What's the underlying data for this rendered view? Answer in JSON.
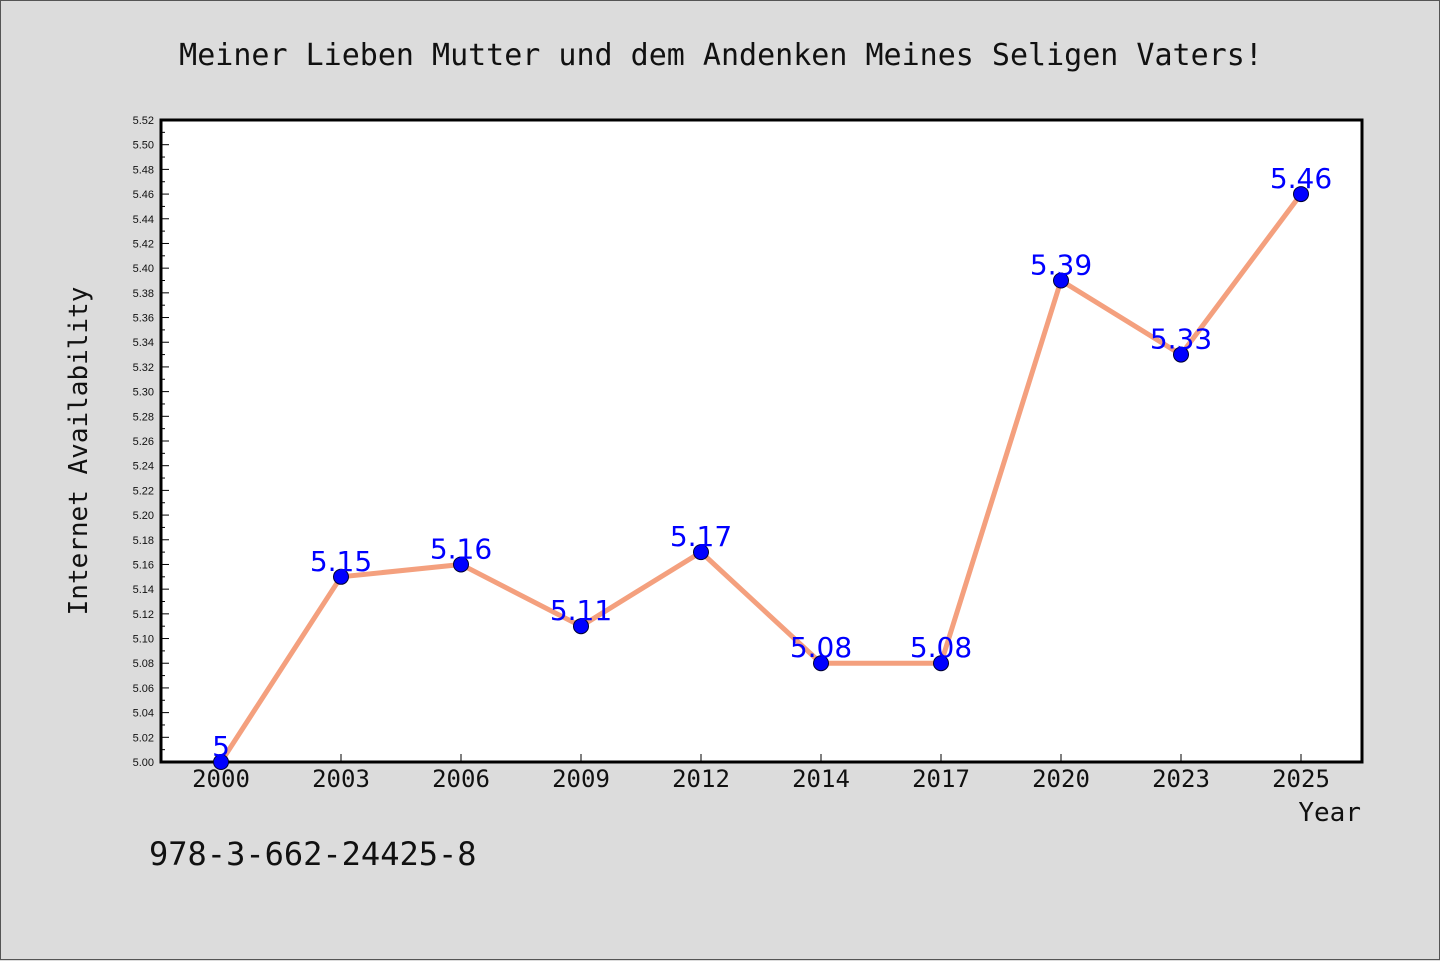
{
  "chart_data": {
    "type": "line",
    "title": "Meiner Lieben Mutter und dem Andenken Meines Seligen Vaters!",
    "xlabel": "Year",
    "ylabel": "Internet Availability",
    "categories": [
      "2000",
      "2003",
      "2006",
      "2009",
      "2012",
      "2014",
      "2017",
      "2020",
      "2023",
      "2025"
    ],
    "series": [
      {
        "values": [
          5.0,
          5.15,
          5.16,
          5.11,
          5.17,
          5.08,
          5.08,
          5.39,
          5.33,
          5.46
        ],
        "data_labels": [
          "5",
          "5.15",
          "5.16",
          "5.11",
          "5.17",
          "5.08",
          "5.08",
          "5.39",
          "5.33",
          "5.46"
        ]
      }
    ],
    "ylim": [
      5.0,
      5.52
    ],
    "ytick_step": 0.02,
    "ytick_labels": [
      "5.00",
      "5.02",
      "5.04",
      "5.06",
      "5.08",
      "5.10",
      "5.12",
      "5.14",
      "5.16",
      "5.18",
      "5.20",
      "5.22",
      "5.24",
      "5.26",
      "5.28",
      "5.30",
      "5.32",
      "5.34",
      "5.36",
      "5.38",
      "5.40",
      "5.42",
      "5.44",
      "5.46",
      "5.48",
      "5.50",
      "5.52"
    ],
    "grid": false,
    "colors": {
      "line": "#f4a07e",
      "marker_fill": "#0000ff",
      "marker_stroke": "#000033",
      "data_label": "#0000ff",
      "plot_bg": "#ffffff",
      "page_bg": "#dcdcdc"
    }
  },
  "footer": {
    "isbn": "978-3-662-24425-8"
  }
}
